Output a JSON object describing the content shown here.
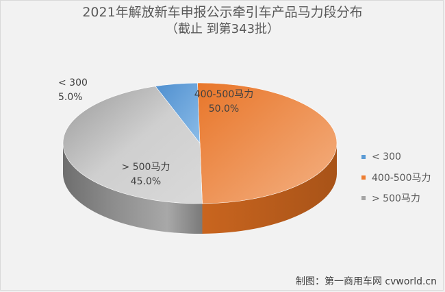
{
  "colors": {
    "background": "#f2f2f2",
    "series_lt300": "#5b9bd5",
    "series_400_500": "#ed7d31",
    "series_gt500": "#a5a5a5"
  },
  "chart_data": {
    "type": "pie",
    "title": "2021年解放新车申报公示牵引车产品马力段分布",
    "subtitle": "（截止 到第343批）",
    "categories": [
      "< 300",
      "400-500马力",
      "> 500马力"
    ],
    "values": [
      5.0,
      50.0,
      45.0
    ],
    "data_labels": [
      {
        "name": "< 300",
        "value": "5.0%"
      },
      {
        "name": "400-500马力",
        "value": "50.0%"
      },
      {
        "name": "> 500马力",
        "value": "45.0%"
      }
    ],
    "legend": [
      "< 300",
      "400-500马力",
      "> 500马力"
    ],
    "legend_position": "right",
    "style": "3d"
  },
  "credit": "制图：第一商用车网 cvworld.cn"
}
